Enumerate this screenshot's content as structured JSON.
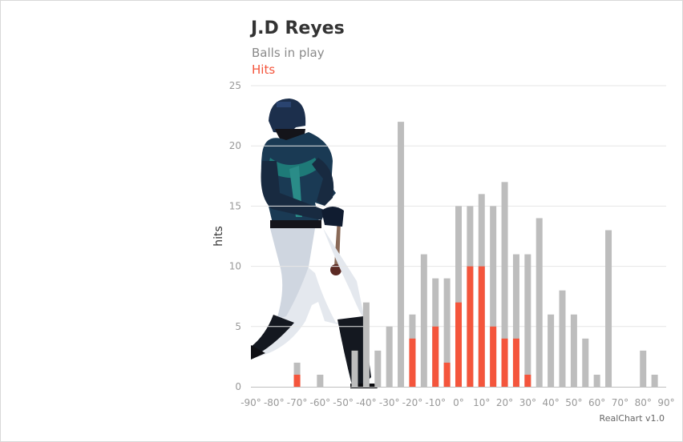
{
  "chart_data": {
    "type": "bar",
    "title": "J.D Reyes",
    "ylabel": "hits",
    "xlabel": "",
    "ylim": [
      0,
      25
    ],
    "yticks": [
      0,
      5,
      10,
      15,
      20,
      25
    ],
    "xlim": [
      -90,
      90
    ],
    "xticks": [
      "-90°",
      "-80°",
      "-70°",
      "-60°",
      "-50°",
      "-40°",
      "-30°",
      "-20°",
      "-10°",
      "0°",
      "10°",
      "20°",
      "30°",
      "40°",
      "50°",
      "60°",
      "70°",
      "80°",
      "90°"
    ],
    "grid": true,
    "legend": "top-left",
    "credits": "RealChart v1.0",
    "colors": {
      "balls": "#bdbdbd",
      "hits": "#f4553c",
      "grid": "#e6e6e6",
      "axis": "#bfbfbf"
    },
    "x": [
      -70,
      -60,
      -45,
      -40,
      -35,
      -30,
      -25,
      -20,
      -15,
      -10,
      -5,
      0,
      5,
      10,
      15,
      20,
      25,
      30,
      35,
      40,
      45,
      50,
      55,
      60,
      65,
      80,
      85
    ],
    "series": [
      {
        "name": "Balls in play",
        "values": [
          2,
          1,
          3,
          7,
          3,
          5,
          22,
          6,
          11,
          9,
          9,
          15,
          15,
          16,
          15,
          17,
          11,
          11,
          14,
          6,
          8,
          6,
          4,
          1,
          13,
          3,
          1
        ]
      },
      {
        "name": "Hits",
        "values": [
          1,
          0,
          0,
          0,
          0,
          0,
          0,
          4,
          0,
          5,
          2,
          7,
          10,
          10,
          5,
          4,
          4,
          1,
          0,
          0,
          0,
          0,
          0,
          0,
          0,
          0,
          0
        ]
      }
    ]
  }
}
